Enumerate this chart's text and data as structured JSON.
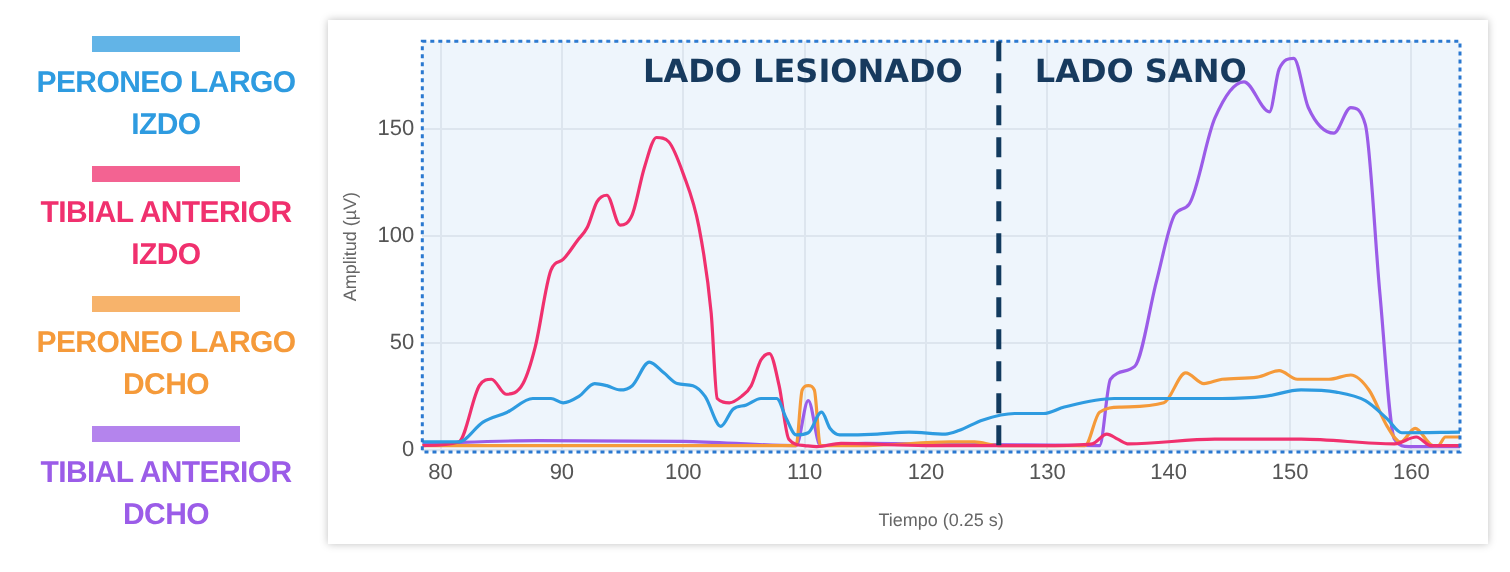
{
  "chart_data": {
    "type": "line",
    "xlabel": "Tiempo (0.25 s)",
    "ylabel": "Amplitud (µV)",
    "xlim": [
      78.5,
      164
    ],
    "xticks": [
      80,
      90,
      100,
      110,
      120,
      130,
      140,
      150,
      160
    ],
    "ylim": [
      -1,
      191
    ],
    "yticks": [
      0,
      50,
      100,
      150
    ],
    "grid": true,
    "legend": "left",
    "marker": "none",
    "line_style": "solid",
    "annotations": [
      "LADO LESIONADO",
      "LADO SANO"
    ],
    "ref_lines": [
      {
        "axis": "x",
        "value": 126,
        "color": "#123a5e",
        "line_style": "dashed"
      }
    ],
    "series": [
      {
        "name": "PERONEO LARGO IZDO",
        "color": "#2e9be0",
        "x": [
          78.5,
          81.5,
          83.5,
          85.5,
          87.6,
          89.1,
          90.1,
          91.4,
          92.7,
          93.7,
          94.8,
          95.8,
          97.2,
          98.4,
          99.5,
          100.8,
          101.8,
          103.1,
          104.1,
          105.2,
          106.4,
          107.7,
          108.5,
          109.3,
          110.3,
          111.4,
          112.1,
          112.9,
          116,
          118.6,
          121.6,
          122.7,
          124.7,
          127.3,
          129.7,
          131.4,
          135.5,
          138.5,
          144.4,
          147.9,
          150.9,
          153.8,
          156.2,
          158,
          159.2,
          164
        ],
        "values": [
          3.7,
          3.7,
          13,
          17.6,
          24,
          24,
          22,
          25,
          31,
          30,
          28,
          30,
          41,
          36,
          31,
          30,
          25,
          11,
          19,
          21,
          24,
          24,
          14.5,
          7,
          8,
          17.6,
          10,
          7,
          7.4,
          8.3,
          7.4,
          9,
          14,
          17,
          17,
          20,
          24,
          24,
          24,
          25,
          28,
          27,
          23,
          14.5,
          8,
          8.3
        ]
      },
      {
        "name": "TIBIAL ANTERIOR IZDO",
        "color": "#f0306e",
        "x": [
          78.5,
          81.5,
          83.2,
          84.2,
          85.4,
          86.8,
          87.8,
          89.1,
          90.1,
          91.3,
          92.1,
          92.9,
          93.7,
          94.8,
          95.8,
          96.8,
          97.8,
          98.8,
          100,
          101.3,
          102.3,
          102.8,
          103.8,
          104.8,
          105.6,
          106.4,
          107.1,
          107.9,
          108.7,
          110,
          111,
          113,
          120,
          130,
          133.7,
          134.9,
          135.8,
          136.7,
          143.8,
          150.9,
          158.6,
          160.4,
          161.6,
          164
        ],
        "values": [
          2,
          3.7,
          30,
          33,
          26,
          31,
          48,
          84,
          89,
          98,
          104,
          116,
          119,
          105,
          110,
          132,
          146,
          144,
          129,
          104,
          64,
          24,
          22,
          25,
          30,
          42,
          45,
          30,
          5,
          2,
          1.5,
          3,
          2,
          2,
          2.8,
          7.4,
          5,
          2.8,
          5,
          5,
          2.8,
          6,
          2,
          2
        ]
      },
      {
        "name": "PERONEO LARGO DCHO",
        "color": "#f59a3a",
        "x": [
          78.5,
          90,
          100,
          109.3,
          109.8,
          110.3,
          110.8,
          111.3,
          115,
          122,
          124,
          126,
          133.1,
          134.3,
          136.1,
          139.6,
          141.4,
          142.9,
          144.4,
          147.3,
          149.1,
          150.6,
          153.2,
          155,
          156.5,
          158,
          159.1,
          160.3,
          161.8,
          162.2,
          162.8,
          164
        ],
        "values": [
          2,
          2,
          2,
          2,
          28,
          30,
          28,
          2,
          2,
          3.7,
          3.7,
          2,
          2,
          17.6,
          20,
          22,
          36,
          31,
          33,
          34,
          37,
          33,
          33,
          35,
          28,
          11,
          3.7,
          10,
          2,
          2,
          6,
          6
        ]
      },
      {
        "name": "TIBIAL ANTERIOR DCHO",
        "color": "#9b5ce8",
        "x": [
          78.5,
          88,
          100,
          109.3,
          110.3,
          111.3,
          115,
          125,
          134.3,
          135.2,
          137.2,
          139,
          140.5,
          141.7,
          143.8,
          146.2,
          148.3,
          149.1,
          150.3,
          151.5,
          153.6,
          155,
          156.2,
          157.4,
          158.6,
          159.8,
          164
        ],
        "values": [
          3,
          4.3,
          4,
          2,
          23,
          2,
          3,
          2.5,
          2,
          33,
          39,
          79,
          110,
          115,
          155,
          172,
          158,
          178,
          183,
          160,
          148,
          160,
          152,
          73,
          5,
          1.5,
          1.5
        ]
      }
    ]
  }
}
